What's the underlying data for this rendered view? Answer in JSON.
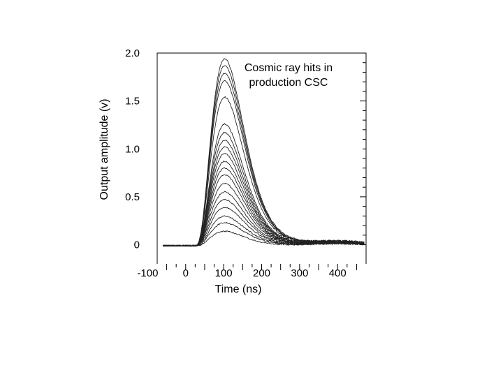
{
  "chart_data": {
    "type": "line",
    "title": "",
    "annotation": [
      "Cosmic ray hits in",
      "production CSC"
    ],
    "xlabel": "Time (ns)",
    "ylabel": "Output amplitude (v)",
    "xlim": [
      -75,
      475
    ],
    "ylim": [
      -0.2,
      2.0
    ],
    "x_ticks": [
      {
        "value": -100,
        "label": "-100"
      },
      {
        "value": 0,
        "label": "0"
      },
      {
        "value": 100,
        "label": "100"
      },
      {
        "value": 200,
        "label": "200"
      },
      {
        "value": 300,
        "label": "300"
      },
      {
        "value": 400,
        "label": "400"
      }
    ],
    "y_ticks": [
      {
        "value": 0,
        "label": "0"
      },
      {
        "value": 0.5,
        "label": "0.5"
      },
      {
        "value": 1.0,
        "label": "1.0"
      },
      {
        "value": 1.5,
        "label": "1.5"
      },
      {
        "value": 2.0,
        "label": "2.0"
      }
    ],
    "peak_time_ns": 103,
    "series_peaks_v": [
      0.15,
      0.24,
      0.31,
      0.4,
      0.48,
      0.56,
      0.65,
      0.74,
      0.81,
      0.88,
      0.96,
      1.03,
      1.1,
      1.18,
      1.27,
      1.55,
      1.72,
      1.8,
      1.88,
      1.95
    ],
    "grid": false
  }
}
